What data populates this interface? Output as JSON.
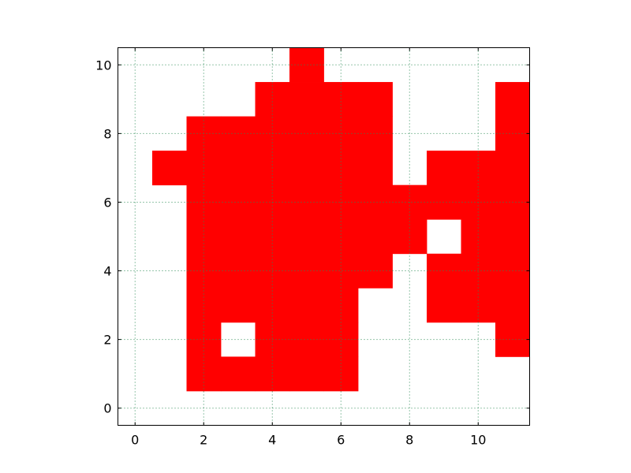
{
  "chart_data": {
    "type": "heatmap",
    "title": "",
    "xlabel": "",
    "ylabel": "",
    "xlim": [
      -0.5,
      11.5
    ],
    "ylim": [
      -0.5,
      10.5
    ],
    "xticks": [
      0,
      2,
      4,
      6,
      8,
      10
    ],
    "yticks": [
      0,
      2,
      4,
      6,
      8,
      10
    ],
    "grid": true,
    "fill_color": "#ff0000",
    "grid_color": "#2e8b57",
    "filled_cells": [
      [
        5,
        10
      ],
      [
        4,
        9
      ],
      [
        5,
        9
      ],
      [
        6,
        9
      ],
      [
        7,
        9
      ],
      [
        11,
        9
      ],
      [
        2,
        8
      ],
      [
        3,
        8
      ],
      [
        4,
        8
      ],
      [
        5,
        8
      ],
      [
        6,
        8
      ],
      [
        7,
        8
      ],
      [
        11,
        8
      ],
      [
        1,
        7
      ],
      [
        2,
        7
      ],
      [
        3,
        7
      ],
      [
        4,
        7
      ],
      [
        5,
        7
      ],
      [
        6,
        7
      ],
      [
        7,
        7
      ],
      [
        9,
        7
      ],
      [
        10,
        7
      ],
      [
        11,
        7
      ],
      [
        2,
        6
      ],
      [
        3,
        6
      ],
      [
        4,
        6
      ],
      [
        5,
        6
      ],
      [
        6,
        6
      ],
      [
        7,
        6
      ],
      [
        8,
        6
      ],
      [
        9,
        6
      ],
      [
        10,
        6
      ],
      [
        11,
        6
      ],
      [
        2,
        5
      ],
      [
        3,
        5
      ],
      [
        4,
        5
      ],
      [
        5,
        5
      ],
      [
        6,
        5
      ],
      [
        7,
        5
      ],
      [
        8,
        5
      ],
      [
        10,
        5
      ],
      [
        11,
        5
      ],
      [
        2,
        4
      ],
      [
        3,
        4
      ],
      [
        4,
        4
      ],
      [
        5,
        4
      ],
      [
        6,
        4
      ],
      [
        7,
        4
      ],
      [
        9,
        4
      ],
      [
        10,
        4
      ],
      [
        11,
        4
      ],
      [
        2,
        3
      ],
      [
        3,
        3
      ],
      [
        4,
        3
      ],
      [
        5,
        3
      ],
      [
        6,
        3
      ],
      [
        9,
        3
      ],
      [
        10,
        3
      ],
      [
        11,
        3
      ],
      [
        2,
        2
      ],
      [
        4,
        2
      ],
      [
        5,
        2
      ],
      [
        6,
        2
      ],
      [
        11,
        2
      ],
      [
        2,
        1
      ],
      [
        3,
        1
      ],
      [
        4,
        1
      ],
      [
        5,
        1
      ],
      [
        6,
        1
      ]
    ]
  }
}
